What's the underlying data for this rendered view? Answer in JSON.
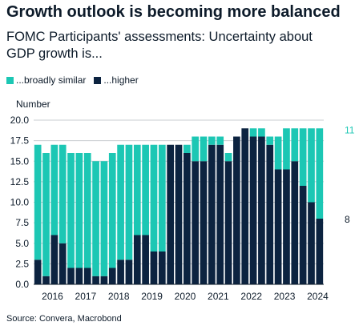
{
  "title": "Growth outlook is becoming more balanced",
  "subtitle": "FOMC Participants' assessments: Uncertainty about GDP growth is...",
  "source": "Source: Convera, Macrobond",
  "colors": {
    "similar": "#1cc7b4",
    "higher": "#0c2340",
    "grid": "#c8ccd0"
  },
  "chart_data": {
    "type": "bar",
    "stacked": true,
    "ylabel": "Number",
    "ylim": [
      0,
      20
    ],
    "yticks": [
      "0.0",
      "2.5",
      "5.0",
      "7.5",
      "10.0",
      "12.5",
      "15.0",
      "17.5",
      "20.0"
    ],
    "xticks": [
      "2016",
      "2017",
      "2018",
      "2019",
      "2020",
      "2021",
      "2022",
      "2023",
      "2024"
    ],
    "legend_position": "top-left",
    "grid": "horizontal",
    "series": [
      {
        "name": "...higher",
        "values": [
          3,
          1,
          6,
          5,
          2,
          2,
          2,
          1,
          1,
          2,
          3,
          3,
          6,
          6,
          4,
          4,
          17,
          17,
          16,
          15,
          15,
          17,
          17,
          15,
          18,
          19,
          18,
          18,
          17,
          14,
          14,
          15,
          12,
          10,
          8
        ]
      },
      {
        "name": "...broadly similar",
        "values": [
          14,
          15,
          11,
          12,
          14,
          14,
          14,
          14,
          14,
          14,
          14,
          14,
          11,
          11,
          13,
          13,
          0,
          0,
          1,
          3,
          3,
          1,
          1,
          1,
          0,
          0,
          1,
          1,
          1,
          4,
          5,
          4,
          7,
          9,
          11
        ]
      }
    ],
    "annotations": [
      {
        "series": "...broadly similar",
        "text": "11"
      },
      {
        "series": "...higher",
        "text": "8"
      }
    ]
  }
}
